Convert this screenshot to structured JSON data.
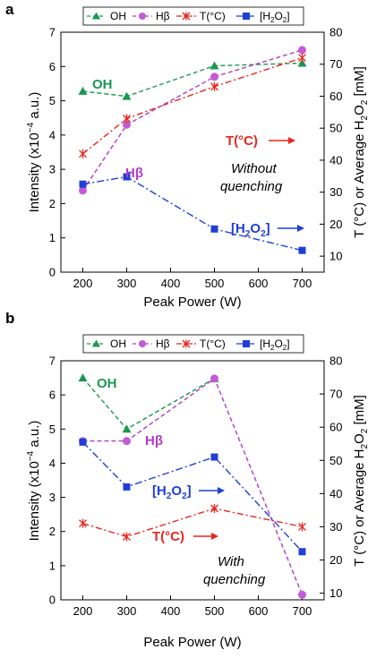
{
  "colors": {
    "OH": "#1a9850",
    "Hbeta": "#b03cc8",
    "T": "#e8261e",
    "H2O2": "#1f3fd6"
  },
  "legend": {
    "OH": "OH",
    "Hbeta": "Hβ",
    "T": "T(°C)",
    "H2O2_pre": "[H",
    "H2O2_sub": "2",
    "H2O2_mid": "O",
    "H2O2_sub2": "2",
    "H2O2_post": "]"
  },
  "axes": {
    "xlabel": "Peak Power (W)",
    "ylabel_left_pre": "Intensity (x10",
    "ylabel_left_sup": "−4",
    "ylabel_left_post": " a.u.)",
    "ylabel_right_pre": "T (°C) or Average H",
    "ylabel_right_sub1": "2",
    "ylabel_right_mid": "O",
    "ylabel_right_sub2": "2",
    "ylabel_right_post": " [mM]"
  },
  "chart_data": [
    {
      "panel": "a",
      "type": "line",
      "x": [
        200,
        300,
        500,
        700
      ],
      "xlim": [
        150,
        750
      ],
      "xticks": [
        200,
        300,
        400,
        500,
        600,
        700
      ],
      "ylim_left": [
        0,
        7
      ],
      "yticks_left": [
        0,
        1,
        2,
        3,
        4,
        5,
        6,
        7
      ],
      "ylim_right": [
        5,
        80
      ],
      "yticks_right": [
        10,
        20,
        30,
        40,
        50,
        60,
        70,
        80
      ],
      "series": [
        {
          "name": "OH",
          "axis": "left",
          "values": [
            5.28,
            5.13,
            6.02,
            6.1
          ]
        },
        {
          "name": "Hβ",
          "axis": "left",
          "values": [
            2.38,
            4.3,
            5.7,
            6.48
          ]
        },
        {
          "name": "T(°C)",
          "axis": "right",
          "values": [
            42,
            53,
            63,
            72
          ]
        },
        {
          "name": "[H2O2]",
          "axis": "right",
          "values": [
            32.5,
            34.8,
            18.5,
            11.8
          ]
        }
      ],
      "annotations": {
        "OH": "OH",
        "Hbeta": "Hβ",
        "T": "T(°C)",
        "H2O2_pre": "[H",
        "H2O2_sub": "2",
        "H2O2_mid": "O",
        "H2O2_sub2": "2",
        "H2O2_post": "]",
        "note_line1": "Without",
        "note_line2": "quenching"
      }
    },
    {
      "panel": "b",
      "type": "line",
      "x": [
        200,
        300,
        500,
        700
      ],
      "xlim": [
        150,
        750
      ],
      "xticks": [
        200,
        300,
        400,
        500,
        600,
        700
      ],
      "ylim_left": [
        0,
        7
      ],
      "yticks_left": [
        0,
        1,
        2,
        3,
        4,
        5,
        6,
        7
      ],
      "ylim_right": [
        8,
        80
      ],
      "yticks_right": [
        10,
        20,
        30,
        40,
        50,
        60,
        70,
        80
      ],
      "series": [
        {
          "name": "OH",
          "axis": "left",
          "values": [
            6.5,
            5.0,
            6.48,
            null
          ]
        },
        {
          "name": "Hβ",
          "axis": "left",
          "values": [
            4.65,
            4.65,
            6.48,
            0.15
          ]
        },
        {
          "name": "T(°C)",
          "axis": "right",
          "values": [
            31,
            27,
            35.5,
            30
          ]
        },
        {
          "name": "[H2O2]",
          "axis": "right",
          "values": [
            55.5,
            42,
            51,
            22.5
          ]
        }
      ],
      "annotations": {
        "OH": "OH",
        "Hbeta": "Hβ",
        "T": "T(°C)",
        "H2O2_pre": "[H",
        "H2O2_sub": "2",
        "H2O2_mid": "O",
        "H2O2_sub2": "2",
        "H2O2_post": "]",
        "note_line1": "With",
        "note_line2": "quenching"
      }
    }
  ]
}
